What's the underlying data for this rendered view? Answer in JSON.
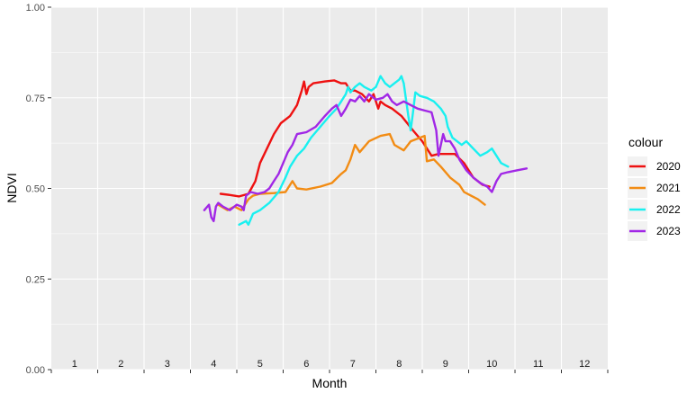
{
  "chart_data": {
    "type": "line",
    "title": "",
    "xlabel": "Month",
    "ylabel": "NDVI",
    "xlim": [
      0.5,
      12.5
    ],
    "ylim": [
      0,
      1
    ],
    "ytick_labels": [
      "0.00",
      "0.25",
      "0.50",
      "0.75",
      "1.00"
    ],
    "yticks": [
      0,
      0.25,
      0.5,
      0.75,
      1.0
    ],
    "xtick_labels": [
      "1",
      "2",
      "3",
      "4",
      "5",
      "6",
      "7",
      "8",
      "9",
      "10",
      "11",
      "12"
    ],
    "grid": true,
    "legend": {
      "title": "colour",
      "placement": "right"
    },
    "series": [
      {
        "name": "2020",
        "color": "#ee1111",
        "points": [
          [
            4.15,
            0.485
          ],
          [
            4.35,
            0.482
          ],
          [
            4.55,
            0.478
          ],
          [
            4.75,
            0.485
          ],
          [
            4.9,
            0.52
          ],
          [
            5.0,
            0.57
          ],
          [
            5.15,
            0.61
          ],
          [
            5.3,
            0.65
          ],
          [
            5.45,
            0.68
          ],
          [
            5.65,
            0.7
          ],
          [
            5.8,
            0.73
          ],
          [
            5.9,
            0.77
          ],
          [
            5.95,
            0.795
          ],
          [
            6.0,
            0.76
          ],
          [
            6.05,
            0.78
          ],
          [
            6.15,
            0.79
          ],
          [
            6.4,
            0.795
          ],
          [
            6.6,
            0.798
          ],
          [
            6.75,
            0.79
          ],
          [
            6.85,
            0.79
          ],
          [
            6.95,
            0.77
          ],
          [
            7.05,
            0.77
          ],
          [
            7.2,
            0.76
          ],
          [
            7.35,
            0.74
          ],
          [
            7.45,
            0.76
          ],
          [
            7.55,
            0.72
          ],
          [
            7.6,
            0.74
          ],
          [
            7.7,
            0.73
          ],
          [
            7.85,
            0.72
          ],
          [
            8.05,
            0.7
          ],
          [
            8.3,
            0.66
          ],
          [
            8.5,
            0.63
          ],
          [
            8.7,
            0.59
          ],
          [
            8.85,
            0.595
          ],
          [
            9.0,
            0.595
          ],
          [
            9.2,
            0.595
          ],
          [
            9.4,
            0.57
          ],
          [
            9.6,
            0.53
          ],
          [
            9.8,
            0.51
          ],
          [
            9.95,
            0.505
          ]
        ]
      },
      {
        "name": "2021",
        "color": "#f28c14",
        "points": [
          [
            4.1,
            0.455
          ],
          [
            4.3,
            0.44
          ],
          [
            4.45,
            0.45
          ],
          [
            4.6,
            0.44
          ],
          [
            4.75,
            0.47
          ],
          [
            4.85,
            0.48
          ],
          [
            5.0,
            0.485
          ],
          [
            5.3,
            0.487
          ],
          [
            5.55,
            0.49
          ],
          [
            5.7,
            0.52
          ],
          [
            5.8,
            0.5
          ],
          [
            6.0,
            0.497
          ],
          [
            6.3,
            0.505
          ],
          [
            6.55,
            0.515
          ],
          [
            6.75,
            0.54
          ],
          [
            6.85,
            0.55
          ],
          [
            6.95,
            0.58
          ],
          [
            7.05,
            0.62
          ],
          [
            7.15,
            0.6
          ],
          [
            7.35,
            0.63
          ],
          [
            7.6,
            0.645
          ],
          [
            7.8,
            0.65
          ],
          [
            7.9,
            0.62
          ],
          [
            8.1,
            0.605
          ],
          [
            8.25,
            0.63
          ],
          [
            8.45,
            0.64
          ],
          [
            8.55,
            0.645
          ],
          [
            8.6,
            0.575
          ],
          [
            8.75,
            0.58
          ],
          [
            8.9,
            0.56
          ],
          [
            9.1,
            0.53
          ],
          [
            9.3,
            0.51
          ],
          [
            9.4,
            0.49
          ],
          [
            9.55,
            0.48
          ],
          [
            9.7,
            0.47
          ],
          [
            9.85,
            0.455
          ]
        ]
      },
      {
        "name": "2022",
        "color": "#19f0f0",
        "points": [
          [
            4.55,
            0.4
          ],
          [
            4.7,
            0.41
          ],
          [
            4.75,
            0.4
          ],
          [
            4.85,
            0.43
          ],
          [
            5.0,
            0.44
          ],
          [
            5.2,
            0.46
          ],
          [
            5.4,
            0.49
          ],
          [
            5.55,
            0.53
          ],
          [
            5.65,
            0.56
          ],
          [
            5.8,
            0.59
          ],
          [
            5.95,
            0.61
          ],
          [
            6.1,
            0.64
          ],
          [
            6.3,
            0.67
          ],
          [
            6.5,
            0.7
          ],
          [
            6.65,
            0.72
          ],
          [
            6.75,
            0.74
          ],
          [
            6.85,
            0.76
          ],
          [
            6.9,
            0.78
          ],
          [
            6.95,
            0.765
          ],
          [
            7.05,
            0.78
          ],
          [
            7.15,
            0.79
          ],
          [
            7.25,
            0.78
          ],
          [
            7.4,
            0.77
          ],
          [
            7.5,
            0.78
          ],
          [
            7.6,
            0.81
          ],
          [
            7.7,
            0.79
          ],
          [
            7.8,
            0.78
          ],
          [
            7.9,
            0.79
          ],
          [
            8.0,
            0.8
          ],
          [
            8.05,
            0.81
          ],
          [
            8.1,
            0.79
          ],
          [
            8.2,
            0.7
          ],
          [
            8.25,
            0.66
          ],
          [
            8.3,
            0.71
          ],
          [
            8.35,
            0.765
          ],
          [
            8.45,
            0.755
          ],
          [
            8.6,
            0.75
          ],
          [
            8.75,
            0.74
          ],
          [
            8.9,
            0.72
          ],
          [
            9.0,
            0.7
          ],
          [
            9.05,
            0.67
          ],
          [
            9.15,
            0.64
          ],
          [
            9.25,
            0.63
          ],
          [
            9.35,
            0.62
          ],
          [
            9.45,
            0.63
          ],
          [
            9.6,
            0.61
          ],
          [
            9.75,
            0.59
          ],
          [
            9.9,
            0.6
          ],
          [
            10.0,
            0.61
          ],
          [
            10.1,
            0.59
          ],
          [
            10.2,
            0.57
          ],
          [
            10.35,
            0.56
          ]
        ]
      },
      {
        "name": "2023",
        "color": "#a127e6",
        "points": [
          [
            3.8,
            0.44
          ],
          [
            3.9,
            0.455
          ],
          [
            3.95,
            0.42
          ],
          [
            4.0,
            0.41
          ],
          [
            4.05,
            0.45
          ],
          [
            4.1,
            0.46
          ],
          [
            4.2,
            0.45
          ],
          [
            4.35,
            0.44
          ],
          [
            4.5,
            0.455
          ],
          [
            4.6,
            0.45
          ],
          [
            4.65,
            0.44
          ],
          [
            4.7,
            0.48
          ],
          [
            4.8,
            0.49
          ],
          [
            4.95,
            0.485
          ],
          [
            5.1,
            0.49
          ],
          [
            5.2,
            0.5
          ],
          [
            5.3,
            0.52
          ],
          [
            5.4,
            0.54
          ],
          [
            5.5,
            0.57
          ],
          [
            5.6,
            0.6
          ],
          [
            5.7,
            0.62
          ],
          [
            5.8,
            0.65
          ],
          [
            6.0,
            0.655
          ],
          [
            6.2,
            0.67
          ],
          [
            6.4,
            0.7
          ],
          [
            6.55,
            0.72
          ],
          [
            6.65,
            0.73
          ],
          [
            6.75,
            0.7
          ],
          [
            6.85,
            0.72
          ],
          [
            6.95,
            0.745
          ],
          [
            7.05,
            0.74
          ],
          [
            7.15,
            0.755
          ],
          [
            7.25,
            0.74
          ],
          [
            7.35,
            0.76
          ],
          [
            7.5,
            0.745
          ],
          [
            7.65,
            0.75
          ],
          [
            7.75,
            0.76
          ],
          [
            7.85,
            0.74
          ],
          [
            7.95,
            0.73
          ],
          [
            8.1,
            0.74
          ],
          [
            8.25,
            0.73
          ],
          [
            8.4,
            0.72
          ],
          [
            8.55,
            0.715
          ],
          [
            8.7,
            0.71
          ],
          [
            8.8,
            0.66
          ],
          [
            8.85,
            0.59
          ],
          [
            8.9,
            0.62
          ],
          [
            8.95,
            0.65
          ],
          [
            9.0,
            0.63
          ],
          [
            9.1,
            0.63
          ],
          [
            9.2,
            0.61
          ],
          [
            9.3,
            0.58
          ],
          [
            9.45,
            0.55
          ],
          [
            9.6,
            0.53
          ],
          [
            9.75,
            0.515
          ],
          [
            9.9,
            0.505
          ],
          [
            10.0,
            0.49
          ],
          [
            10.1,
            0.52
          ],
          [
            10.2,
            0.54
          ],
          [
            10.35,
            0.545
          ],
          [
            10.55,
            0.55
          ],
          [
            10.75,
            0.555
          ]
        ]
      }
    ]
  },
  "colors": {
    "panel_background": "#ebebeb",
    "grid_line": "#ffffff"
  }
}
